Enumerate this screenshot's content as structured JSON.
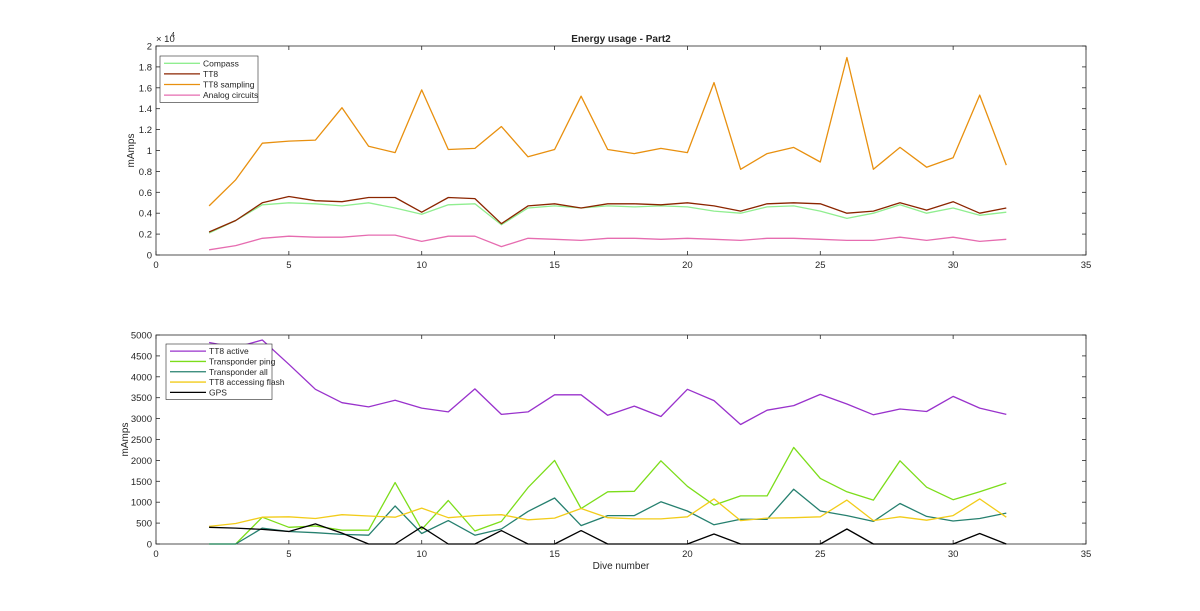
{
  "chart_data": [
    {
      "type": "line",
      "title": "Energy usage - Part2",
      "xlabel": "",
      "ylabel": "mAmps",
      "exponent_label": "× 10",
      "exponent_power": "4",
      "xlim": [
        0,
        35
      ],
      "ylim": [
        0,
        20000
      ],
      "xticks": [
        0,
        5,
        10,
        15,
        20,
        25,
        30,
        35
      ],
      "yticks": [
        0,
        2000,
        4000,
        6000,
        8000,
        10000,
        12000,
        14000,
        16000,
        18000,
        20000
      ],
      "ytick_labels": [
        "0",
        "0.2",
        "0.4",
        "0.6",
        "0.8",
        "1",
        "1.2",
        "1.4",
        "1.6",
        "1.8",
        "2"
      ],
      "grid": false,
      "legend_position": "top-left",
      "x": [
        2,
        3,
        4,
        5,
        6,
        7,
        8,
        9,
        10,
        11,
        12,
        13,
        14,
        15,
        16,
        17,
        18,
        19,
        20,
        21,
        22,
        23,
        24,
        25,
        26,
        27,
        28,
        29,
        30,
        31,
        32
      ],
      "series": [
        {
          "name": "Compass",
          "color": "#90ee90",
          "values": [
            2100,
            3300,
            4800,
            5000,
            4900,
            4700,
            5000,
            4500,
            3900,
            4800,
            4900,
            2900,
            4500,
            4700,
            4500,
            4700,
            4600,
            4700,
            4600,
            4200,
            4000,
            4600,
            4700,
            4200,
            3500,
            4000,
            4800,
            4000,
            4500,
            3800,
            4100
          ]
        },
        {
          "name": "TT8",
          "color": "#8b2500",
          "values": [
            2200,
            3300,
            5000,
            5600,
            5200,
            5100,
            5500,
            5500,
            4100,
            5500,
            5400,
            3000,
            4700,
            4900,
            4500,
            4900,
            4900,
            4800,
            5000,
            4700,
            4200,
            4900,
            5000,
            4900,
            4000,
            4200,
            5000,
            4300,
            5100,
            4000,
            4500
          ]
        },
        {
          "name": "TT8 sampling",
          "color": "#e8900f",
          "values": [
            4700,
            7200,
            10700,
            10900,
            11000,
            14100,
            10400,
            9800,
            15800,
            10100,
            10200,
            12300,
            9400,
            10100,
            15200,
            10100,
            9700,
            10200,
            9800,
            16500,
            8200,
            9700,
            10300,
            8900,
            18900,
            8200,
            10300,
            8400,
            9300,
            15300,
            8600
          ]
        },
        {
          "name": "Analog circuits",
          "color": "#e66cb0",
          "values": [
            500,
            900,
            1600,
            1800,
            1700,
            1700,
            1900,
            1900,
            1300,
            1800,
            1800,
            800,
            1600,
            1500,
            1400,
            1600,
            1600,
            1500,
            1600,
            1500,
            1400,
            1600,
            1600,
            1500,
            1400,
            1400,
            1700,
            1400,
            1700,
            1300,
            1500
          ]
        }
      ]
    },
    {
      "type": "line",
      "title": "",
      "xlabel": "Dive number",
      "ylabel": "mAmps",
      "xlim": [
        0,
        35
      ],
      "ylim": [
        0,
        5000
      ],
      "xticks": [
        0,
        5,
        10,
        15,
        20,
        25,
        30,
        35
      ],
      "yticks": [
        0,
        500,
        1000,
        1500,
        2000,
        2500,
        3000,
        3500,
        4000,
        4500,
        5000
      ],
      "ytick_labels": [
        "0",
        "500",
        "1000",
        "1500",
        "2000",
        "2500",
        "3000",
        "3500",
        "4000",
        "4500",
        "5000"
      ],
      "grid": false,
      "legend_position": "top-left",
      "x": [
        2,
        3,
        4,
        5,
        6,
        7,
        8,
        9,
        10,
        11,
        12,
        13,
        14,
        15,
        16,
        17,
        18,
        19,
        20,
        21,
        22,
        23,
        24,
        25,
        26,
        27,
        28,
        29,
        30,
        31,
        32
      ],
      "series": [
        {
          "name": "TT8 active",
          "color": "#9932cc",
          "values": [
            4820,
            4700,
            4880,
            4300,
            3700,
            3380,
            3280,
            3440,
            3250,
            3160,
            3710,
            3100,
            3160,
            3570,
            3570,
            3080,
            3300,
            3050,
            3700,
            3430,
            2860,
            3200,
            3310,
            3580,
            3350,
            3090,
            3230,
            3170,
            3530,
            3250,
            3100
          ]
        },
        {
          "name": "Transponder ping",
          "color": "#7cdd1a",
          "values": [
            0,
            0,
            640,
            400,
            430,
            330,
            330,
            1470,
            350,
            1040,
            310,
            540,
            1350,
            2000,
            850,
            1250,
            1260,
            1990,
            1380,
            930,
            1150,
            1150,
            2310,
            1570,
            1250,
            1050,
            1990,
            1360,
            1060,
            1250,
            1460
          ]
        },
        {
          "name": "Transponder all",
          "color": "#26806f",
          "values": [
            0,
            0,
            380,
            300,
            270,
            230,
            210,
            910,
            250,
            560,
            210,
            360,
            780,
            1100,
            440,
            680,
            680,
            1010,
            790,
            460,
            590,
            590,
            1310,
            790,
            680,
            540,
            970,
            660,
            550,
            610,
            740
          ]
        },
        {
          "name": "TT8 accessing flash",
          "color": "#f2cc1a",
          "values": [
            420,
            490,
            640,
            650,
            610,
            700,
            670,
            640,
            860,
            630,
            680,
            700,
            580,
            620,
            850,
            630,
            600,
            600,
            650,
            1080,
            560,
            620,
            630,
            650,
            1050,
            560,
            650,
            570,
            680,
            1080,
            640
          ]
        },
        {
          "name": "GPS",
          "color": "#000000",
          "values": [
            400,
            380,
            350,
            300,
            480,
            260,
            0,
            0,
            410,
            0,
            0,
            320,
            0,
            0,
            320,
            0,
            0,
            0,
            0,
            240,
            0,
            0,
            0,
            0,
            360,
            0,
            0,
            0,
            0,
            250,
            0
          ]
        }
      ]
    }
  ]
}
